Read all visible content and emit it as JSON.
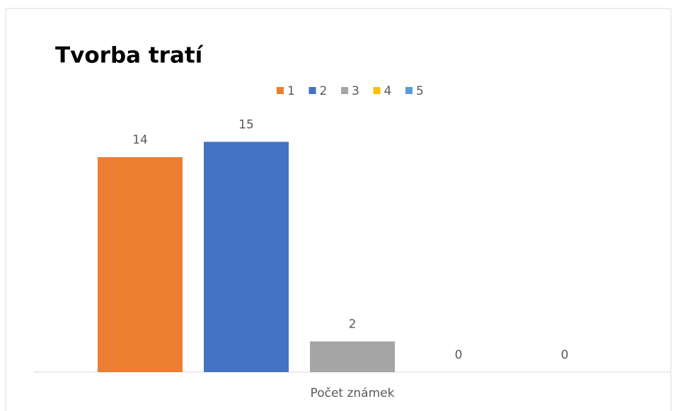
{
  "chart_data": {
    "type": "bar",
    "title": "Tvorba tratí",
    "categories": [
      "Počet známek"
    ],
    "series": [
      {
        "name": "1",
        "color": "#ED7D31",
        "values": [
          14
        ]
      },
      {
        "name": "2",
        "color": "#4472C4",
        "values": [
          15
        ]
      },
      {
        "name": "3",
        "color": "#A5A5A5",
        "values": [
          2
        ]
      },
      {
        "name": "4",
        "color": "#FFC000",
        "values": [
          0
        ]
      },
      {
        "name": "5",
        "color": "#5B9BD5",
        "values": [
          0
        ]
      }
    ],
    "ylim": [
      0,
      20
    ],
    "legend": "top"
  }
}
